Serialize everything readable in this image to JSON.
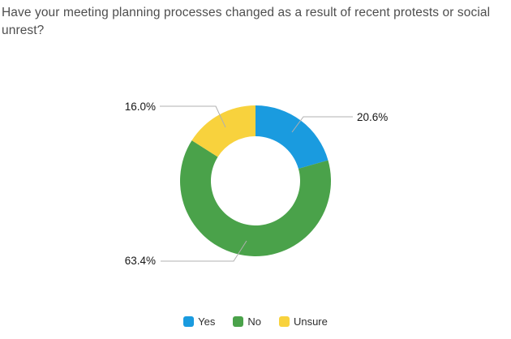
{
  "chart_data": {
    "type": "pie",
    "subtype": "donut",
    "title": "Have your meeting planning processes changed as a result of recent protests or social unrest?",
    "categories": [
      "Yes",
      "No",
      "Unsure"
    ],
    "values": [
      20.6,
      63.4,
      16.0
    ],
    "slices": [
      {
        "name": "Yes",
        "value": 20.6,
        "label": "20.6%",
        "color": "#1a9bdf"
      },
      {
        "name": "No",
        "value": 63.4,
        "label": "63.4%",
        "color": "#4aa24a"
      },
      {
        "name": "Unsure",
        "value": 16.0,
        "label": "16.0%",
        "color": "#f8d23d"
      }
    ],
    "start_angle_deg": 0,
    "direction": "clockwise",
    "donut_hole_ratio": 0.59,
    "legend_position": "bottom",
    "leader_line_color": "#b0b0b0",
    "title_color": "#4e4e4e"
  }
}
